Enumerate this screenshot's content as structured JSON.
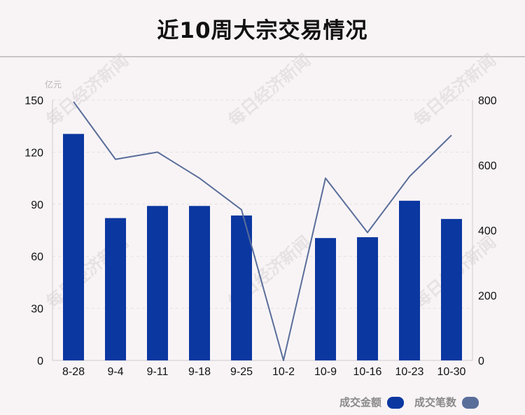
{
  "title": "近10周大宗交易情况",
  "watermark": "每日经济新闻",
  "colors": {
    "bar": "#0b37a0",
    "line": "#5a6e9a",
    "grid": "#e4dfe2",
    "background": "#f8f4f6"
  },
  "chart_data": {
    "type": "bar",
    "title": "近10周大宗交易情况",
    "categories": [
      "8-28",
      "9-4",
      "9-11",
      "9-18",
      "9-25",
      "10-2",
      "10-9",
      "10-16",
      "10-23",
      "10-30"
    ],
    "left_axis": {
      "unit": "亿元",
      "ticks": [
        "0",
        "30",
        "60",
        "90",
        "120",
        "150"
      ],
      "ylim": [
        0,
        150
      ]
    },
    "right_axis": {
      "unit": "",
      "ticks": [
        "0",
        "200",
        "400",
        "600",
        "800"
      ],
      "ylim": [
        0,
        800
      ]
    },
    "series": [
      {
        "name": "成交金额",
        "type": "bar",
        "axis": "left",
        "values": [
          130.5,
          82,
          89,
          89,
          83.5,
          0,
          70.5,
          71,
          92,
          81.5
        ]
      },
      {
        "name": "成交笔数",
        "type": "line",
        "axis": "right",
        "values": [
          795,
          618,
          640,
          560,
          463,
          0,
          560,
          393,
          565,
          692
        ]
      }
    ],
    "grid": true,
    "legend_position": "bottom-right"
  }
}
